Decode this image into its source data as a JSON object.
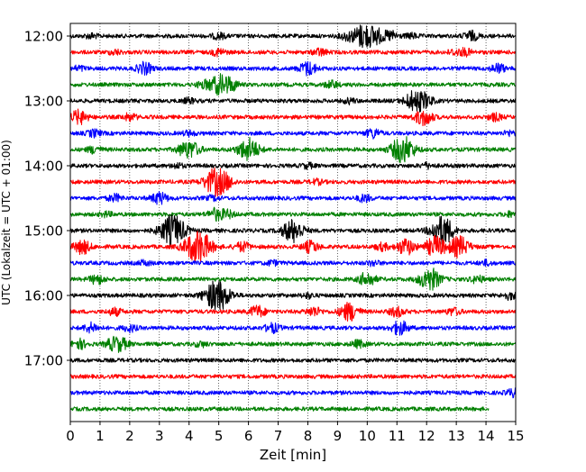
{
  "chart_data": {
    "type": "line",
    "xlabel": "Zeit  [min]",
    "ylabel": "UTC (Lokalzeit = UTC + 01:00)",
    "xlim": [
      0,
      15
    ],
    "x_ticks": [
      "0",
      "1",
      "2",
      "3",
      "4",
      "5",
      "6",
      "7",
      "8",
      "9",
      "10",
      "11",
      "12",
      "13",
      "14",
      "15"
    ],
    "y_tick_labels": [
      "12:00",
      "13:00",
      "14:00",
      "15:00",
      "16:00",
      "17:00"
    ],
    "grid": "vertical dotted lines at each minute",
    "trace_color_cycle": [
      "#000000",
      "#ff0000",
      "#0000ff",
      "#008000"
    ],
    "traces": [
      {
        "start": "12:00",
        "end_min": 15,
        "events": [
          [
            0.7,
            0.2
          ],
          [
            5,
            0.25
          ],
          [
            9.3,
            0.3
          ],
          [
            9.85,
            1.0
          ],
          [
            10.3,
            0.6
          ],
          [
            10.8,
            0.4
          ],
          [
            11.5,
            0.2
          ],
          [
            13.5,
            0.4
          ]
        ]
      },
      {
        "start": "12:15",
        "end_min": 15,
        "events": [
          [
            1.5,
            0.2
          ],
          [
            5,
            0.3
          ],
          [
            8.4,
            0.3
          ],
          [
            12.9,
            0.2
          ],
          [
            13.3,
            0.3
          ]
        ]
      },
      {
        "start": "12:30",
        "end_min": 15,
        "events": [
          [
            0.3,
            0.2
          ],
          [
            2.5,
            0.5
          ],
          [
            8,
            0.6
          ],
          [
            14.4,
            0.4
          ]
        ]
      },
      {
        "start": "12:45",
        "end_min": 15,
        "events": [
          [
            4.5,
            0.3
          ],
          [
            5,
            0.8
          ],
          [
            5.4,
            0.5
          ],
          [
            8.8,
            0.3
          ]
        ]
      },
      {
        "start": "13:00",
        "end_min": 15,
        "events": [
          [
            4,
            0.2
          ],
          [
            9.4,
            0.2
          ],
          [
            11.6,
            0.9
          ],
          [
            12,
            0.4
          ]
        ]
      },
      {
        "start": "13:15",
        "end_min": 15,
        "events": [
          [
            0.3,
            0.6
          ],
          [
            2,
            0.3
          ],
          [
            11.9,
            0.7
          ],
          [
            14.3,
            0.3
          ]
        ]
      },
      {
        "start": "13:30",
        "end_min": 15,
        "events": [
          [
            0.8,
            0.3
          ],
          [
            4,
            0.2
          ],
          [
            10.2,
            0.4
          ],
          [
            14.8,
            0.2
          ]
        ]
      },
      {
        "start": "13:45",
        "end_min": 15,
        "events": [
          [
            0.8,
            0.3
          ],
          [
            3.8,
            0.4
          ],
          [
            4.1,
            0.6
          ],
          [
            6,
            1.0
          ],
          [
            11.2,
            1.2
          ]
        ]
      },
      {
        "start": "14:00",
        "end_min": 15,
        "events": [
          [
            3.6,
            0.2
          ],
          [
            8,
            0.2
          ],
          [
            12,
            0.2
          ]
        ]
      },
      {
        "start": "14:15",
        "end_min": 15,
        "events": [
          [
            4.9,
            1.2
          ],
          [
            5.3,
            0.3
          ],
          [
            8.3,
            0.2
          ]
        ]
      },
      {
        "start": "14:30",
        "end_min": 15,
        "events": [
          [
            1.5,
            0.3
          ],
          [
            3,
            0.5
          ],
          [
            4.8,
            0.2
          ],
          [
            9.9,
            0.3
          ]
        ]
      },
      {
        "start": "14:45",
        "end_min": 15,
        "events": [
          [
            1.2,
            0.2
          ],
          [
            4.9,
            0.5
          ],
          [
            5.3,
            0.3
          ],
          [
            14.8,
            0.2
          ]
        ]
      },
      {
        "start": "15:00",
        "end_min": 15,
        "events": [
          [
            3.45,
            1.4
          ],
          [
            7.5,
            1.0
          ],
          [
            12.45,
            1.0
          ],
          [
            12.7,
            0.5
          ]
        ]
      },
      {
        "start": "15:15",
        "end_min": 15,
        "events": [
          [
            0.4,
            0.6
          ],
          [
            4.3,
            1.5
          ],
          [
            5.8,
            0.4
          ],
          [
            8.1,
            0.5
          ],
          [
            10.5,
            0.3
          ],
          [
            11.3,
            0.7
          ],
          [
            12.3,
            0.9
          ],
          [
            13.1,
            0.9
          ]
        ]
      },
      {
        "start": "15:30",
        "end_min": 15,
        "events": [
          [
            2.5,
            0.2
          ],
          [
            6.8,
            0.2
          ],
          [
            10.2,
            0.2
          ],
          [
            14,
            0.2
          ]
        ]
      },
      {
        "start": "15:45",
        "end_min": 15,
        "events": [
          [
            0.9,
            0.4
          ],
          [
            10,
            0.6
          ],
          [
            12.1,
            1.0
          ],
          [
            13.7,
            0.3
          ]
        ]
      },
      {
        "start": "16:00",
        "end_min": 15,
        "events": [
          [
            4.95,
            1.4
          ],
          [
            8,
            0.2
          ],
          [
            14.8,
            0.3
          ]
        ]
      },
      {
        "start": "16:15",
        "end_min": 15,
        "events": [
          [
            1.5,
            0.3
          ],
          [
            6.3,
            0.5
          ],
          [
            8.2,
            0.4
          ],
          [
            9.4,
            0.8
          ],
          [
            11,
            0.4
          ],
          [
            12.9,
            0.3
          ]
        ]
      },
      {
        "start": "16:30",
        "end_min": 15,
        "events": [
          [
            0.7,
            0.4
          ],
          [
            2,
            0.3
          ],
          [
            6.8,
            0.4
          ],
          [
            11.1,
            0.6
          ]
        ]
      },
      {
        "start": "16:45",
        "end_min": 15,
        "events": [
          [
            0.3,
            0.4
          ],
          [
            1.4,
            0.4
          ],
          [
            1.7,
            0.5
          ],
          [
            4.4,
            0.2
          ],
          [
            9.7,
            0.3
          ]
        ]
      },
      {
        "start": "17:00",
        "end_min": 15,
        "events": []
      },
      {
        "start": "17:15",
        "end_min": 15,
        "events": []
      },
      {
        "start": "17:30",
        "end_min": 15,
        "events": [
          [
            14.9,
            0.3
          ]
        ]
      },
      {
        "start": "17:45",
        "end_min": 14.1,
        "events": []
      }
    ]
  }
}
